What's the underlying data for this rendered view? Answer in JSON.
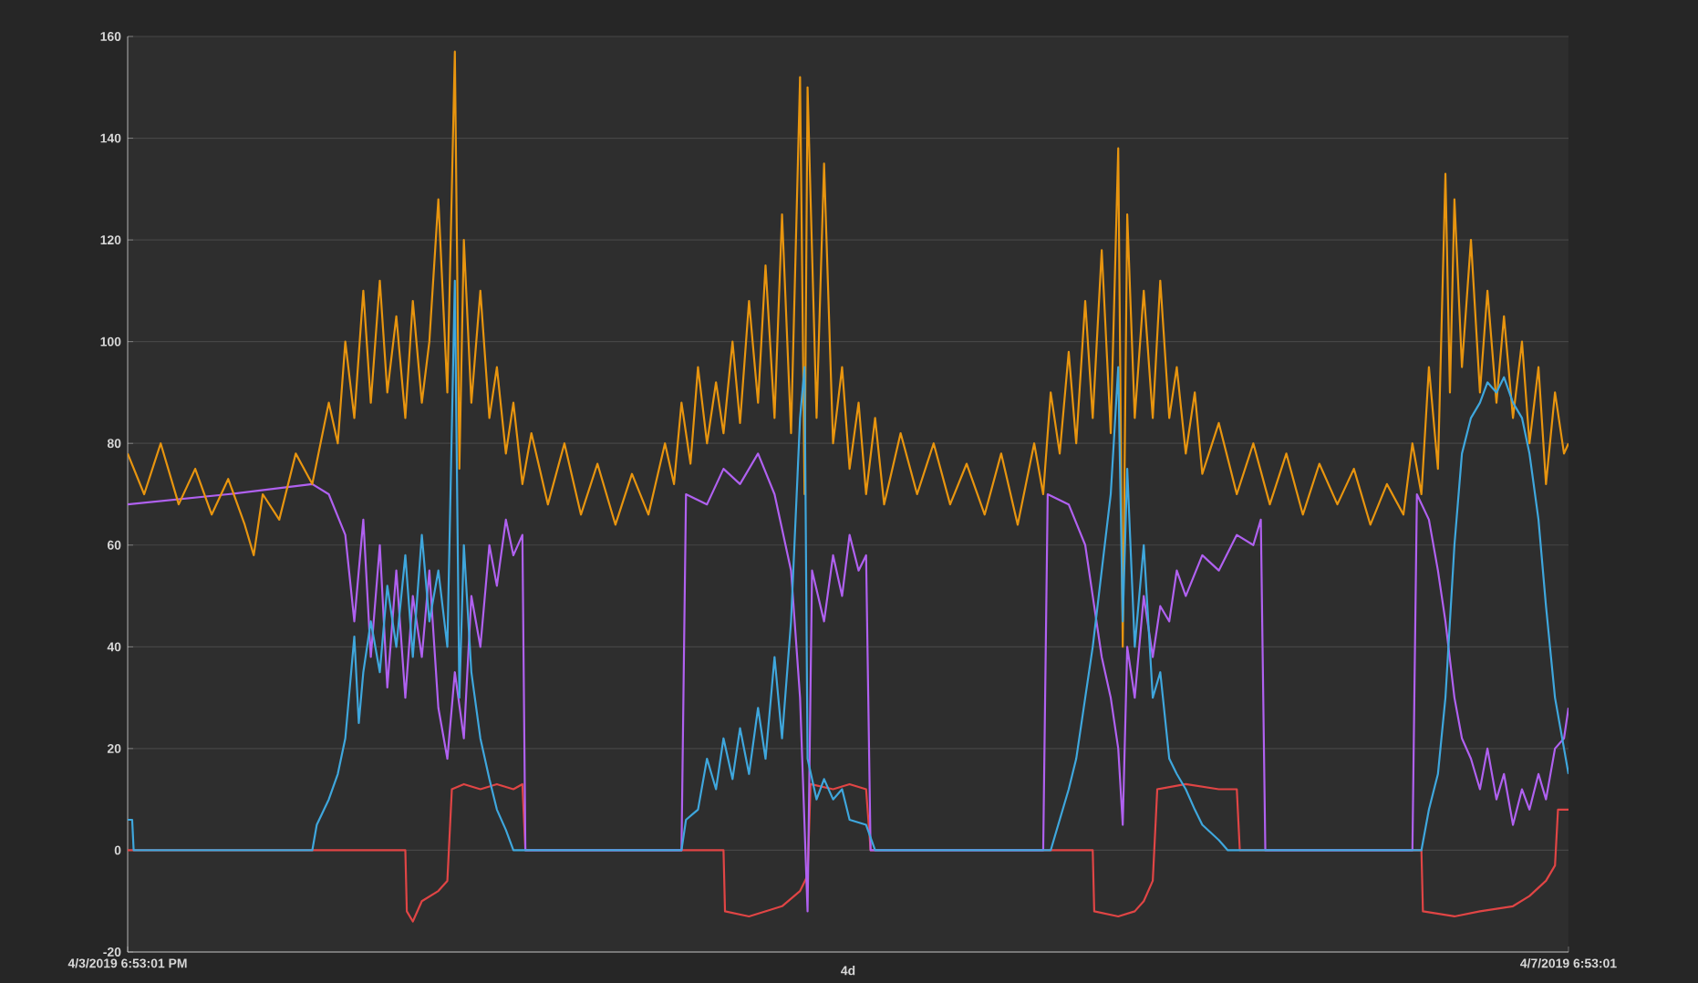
{
  "chart_data": {
    "type": "line",
    "xlim": [
      "2019-04-03T18:53",
      "2019-04-07T18:53"
    ],
    "ylim": [
      -20,
      160
    ],
    "xticks": [
      {
        "value": "2019-04-03T18:53",
        "label": "4/3/2019 6:53:01 PM"
      },
      {
        "value": "2019-04-07T18:53",
        "label": "4/7/2019 6:53:01"
      }
    ],
    "yticks": [
      -20,
      0,
      20,
      40,
      60,
      80,
      100,
      120,
      140,
      160
    ],
    "annotations": [
      "4d"
    ],
    "grid": "y",
    "series": [
      {
        "color": "#e04545",
        "x": [
          "2019-04-03T18:53",
          "2019-04-04T13:23",
          "2019-04-04T13:29",
          "2019-04-04T13:53",
          "2019-04-04T14:29",
          "2019-04-04T15:35",
          "2019-04-04T16:11",
          "2019-04-04T16:29",
          "2019-04-04T17:17",
          "2019-04-04T18:23",
          "2019-04-04T19:29",
          "2019-04-04T20:35",
          "2019-04-04T21:11",
          "2019-04-04T21:23",
          "2019-04-05T10:35",
          "2019-04-05T10:41",
          "2019-04-05T12:17",
          "2019-04-05T13:23",
          "2019-04-05T14:29",
          "2019-04-05T15:41",
          "2019-04-05T16:11",
          "2019-04-05T16:23",
          "2019-04-05T17:53",
          "2019-04-05T18:59",
          "2019-04-05T20:05",
          "2019-04-05T20:23",
          "2019-04-06T11:11",
          "2019-04-06T11:17",
          "2019-04-06T12:53",
          "2019-04-06T13:59",
          "2019-04-06T14:35",
          "2019-04-06T15:11",
          "2019-04-06T15:29",
          "2019-04-06T17:23",
          "2019-04-06T19:35",
          "2019-04-06T20:47",
          "2019-04-06T20:59",
          "2019-04-07T09:05",
          "2019-04-07T09:11",
          "2019-04-07T11:17",
          "2019-04-07T12:59",
          "2019-04-07T15:11",
          "2019-04-07T16:17",
          "2019-04-07T17:23",
          "2019-04-07T17:59",
          "2019-04-07T18:11",
          "2019-04-07T18:53"
        ],
        "values": [
          0,
          0,
          -12,
          -14,
          -10,
          -8,
          -6,
          12,
          13,
          12,
          13,
          12,
          13,
          0,
          0,
          -12,
          -13,
          -12,
          -11,
          -8,
          -5,
          13,
          12,
          13,
          12,
          0,
          0,
          -12,
          -13,
          -12,
          -10,
          -6,
          12,
          13,
          12,
          12,
          0,
          0,
          -12,
          -13,
          -12,
          -11,
          -9,
          -6,
          -3,
          8,
          8
        ]
      },
      {
        "color": "#b061f0",
        "x": [
          "2019-04-03T18:53",
          "2019-04-04T01:35",
          "2019-04-04T07:11",
          "2019-04-04T08:17",
          "2019-04-04T09:23",
          "2019-04-04T09:59",
          "2019-04-04T10:35",
          "2019-04-04T11:05",
          "2019-04-04T11:41",
          "2019-04-04T12:11",
          "2019-04-04T12:47",
          "2019-04-04T13:23",
          "2019-04-04T13:53",
          "2019-04-04T14:29",
          "2019-04-04T14:59",
          "2019-04-04T15:35",
          "2019-04-04T16:11",
          "2019-04-04T16:41",
          "2019-04-04T17:17",
          "2019-04-04T17:47",
          "2019-04-04T18:23",
          "2019-04-04T18:59",
          "2019-04-04T19:29",
          "2019-04-04T20:05",
          "2019-04-04T20:35",
          "2019-04-04T21:11",
          "2019-04-04T21:23",
          "2019-04-05T07:47",
          "2019-04-05T08:05",
          "2019-04-05T09:29",
          "2019-04-05T10:35",
          "2019-04-05T11:41",
          "2019-04-05T12:53",
          "2019-04-05T13:59",
          "2019-04-05T15:05",
          "2019-04-05T15:41",
          "2019-04-05T16:11",
          "2019-04-05T16:29",
          "2019-04-05T17:17",
          "2019-04-05T17:53",
          "2019-04-05T18:29",
          "2019-04-05T18:59",
          "2019-04-05T19:35",
          "2019-04-05T20:05",
          "2019-04-05T20:23",
          "2019-04-06T07:53",
          "2019-04-06T08:11",
          "2019-04-06T09:35",
          "2019-04-06T10:41",
          "2019-04-06T11:11",
          "2019-04-06T11:47",
          "2019-04-06T12:23",
          "2019-04-06T12:53",
          "2019-04-06T13:11",
          "2019-04-06T13:29",
          "2019-04-06T13:59",
          "2019-04-06T14:35",
          "2019-04-06T15:11",
          "2019-04-06T15:41",
          "2019-04-06T16:17",
          "2019-04-06T16:47",
          "2019-04-06T17:23",
          "2019-04-06T18:29",
          "2019-04-06T19:35",
          "2019-04-06T20:47",
          "2019-04-06T21:53",
          "2019-04-06T22:23",
          "2019-04-06T22:41",
          "2019-04-07T08:29",
          "2019-04-07T08:47",
          "2019-04-07T09:35",
          "2019-04-07T10:11",
          "2019-04-07T10:41",
          "2019-04-07T11:17",
          "2019-04-07T11:47",
          "2019-04-07T12:23",
          "2019-04-07T12:59",
          "2019-04-07T13:29",
          "2019-04-07T14:05",
          "2019-04-07T14:35",
          "2019-04-07T15:11",
          "2019-04-07T15:47",
          "2019-04-07T16:17",
          "2019-04-07T16:53",
          "2019-04-07T17:23",
          "2019-04-07T17:59",
          "2019-04-07T18:35",
          "2019-04-07T18:53"
        ],
        "values": [
          68,
          70,
          72,
          70,
          62,
          45,
          65,
          38,
          60,
          32,
          55,
          30,
          50,
          38,
          55,
          28,
          18,
          35,
          22,
          50,
          40,
          60,
          52,
          65,
          58,
          62,
          0,
          0,
          70,
          68,
          75,
          72,
          78,
          70,
          55,
          30,
          -12,
          55,
          45,
          58,
          50,
          62,
          55,
          58,
          0,
          0,
          70,
          68,
          60,
          50,
          38,
          30,
          20,
          5,
          40,
          30,
          50,
          38,
          48,
          45,
          55,
          50,
          58,
          55,
          62,
          60,
          65,
          0,
          0,
          70,
          65,
          55,
          45,
          30,
          22,
          18,
          12,
          20,
          10,
          15,
          5,
          12,
          8,
          15,
          10,
          20,
          22,
          28
        ]
      },
      {
        "color": "#3fa7dd",
        "x": [
          "2019-04-03T18:53",
          "2019-04-03T19:11",
          "2019-04-03T19:17",
          "2019-04-04T07:11",
          "2019-04-04T07:29",
          "2019-04-04T08:17",
          "2019-04-04T08:53",
          "2019-04-04T09:23",
          "2019-04-04T09:59",
          "2019-04-04T10:17",
          "2019-04-04T10:35",
          "2019-04-04T11:05",
          "2019-04-04T11:41",
          "2019-04-04T12:11",
          "2019-04-04T12:47",
          "2019-04-04T13:23",
          "2019-04-04T13:53",
          "2019-04-04T14:29",
          "2019-04-04T14:59",
          "2019-04-04T15:35",
          "2019-04-04T16:11",
          "2019-04-04T16:41",
          "2019-04-04T16:59",
          "2019-04-04T17:17",
          "2019-04-04T17:47",
          "2019-04-04T18:23",
          "2019-04-04T18:59",
          "2019-04-04T19:29",
          "2019-04-04T20:05",
          "2019-04-04T20:35",
          "2019-04-05T07:47",
          "2019-04-05T08:05",
          "2019-04-05T08:53",
          "2019-04-05T09:29",
          "2019-04-05T10:05",
          "2019-04-05T10:35",
          "2019-04-05T11:11",
          "2019-04-05T11:41",
          "2019-04-05T12:17",
          "2019-04-05T12:53",
          "2019-04-05T13:23",
          "2019-04-05T13:59",
          "2019-04-05T14:29",
          "2019-04-05T15:05",
          "2019-04-05T15:41",
          "2019-04-05T15:59",
          "2019-04-05T16:11",
          "2019-04-05T16:47",
          "2019-04-05T17:17",
          "2019-04-05T17:53",
          "2019-04-05T18:29",
          "2019-04-05T18:59",
          "2019-04-05T20:05",
          "2019-04-05T20:41",
          "2019-04-06T08:23",
          "2019-04-06T08:59",
          "2019-04-06T09:35",
          "2019-04-06T10:05",
          "2019-04-06T10:41",
          "2019-04-06T11:11",
          "2019-04-06T11:47",
          "2019-04-06T12:23",
          "2019-04-06T12:53",
          "2019-04-06T13:11",
          "2019-04-06T13:29",
          "2019-04-06T13:59",
          "2019-04-06T14:35",
          "2019-04-06T15:11",
          "2019-04-06T15:41",
          "2019-04-06T16:17",
          "2019-04-06T16:47",
          "2019-04-06T17:23",
          "2019-04-06T17:59",
          "2019-04-06T18:29",
          "2019-04-06T19:35",
          "2019-04-06T20:11",
          "2019-04-07T09:05",
          "2019-04-07T09:35",
          "2019-04-07T10:11",
          "2019-04-07T10:41",
          "2019-04-07T11:17",
          "2019-04-07T11:47",
          "2019-04-07T12:23",
          "2019-04-07T12:59",
          "2019-04-07T13:29",
          "2019-04-07T14:05",
          "2019-04-07T14:35",
          "2019-04-07T15:11",
          "2019-04-07T15:47",
          "2019-04-07T16:17",
          "2019-04-07T16:53",
          "2019-04-07T17:23",
          "2019-04-07T17:59",
          "2019-04-07T18:35",
          "2019-04-07T18:53"
        ],
        "values": [
          6,
          6,
          0,
          0,
          5,
          10,
          15,
          22,
          42,
          25,
          35,
          45,
          35,
          52,
          40,
          58,
          38,
          62,
          45,
          55,
          40,
          112,
          30,
          60,
          35,
          22,
          14,
          8,
          4,
          0,
          0,
          6,
          8,
          18,
          12,
          22,
          14,
          24,
          15,
          28,
          18,
          38,
          22,
          45,
          85,
          95,
          18,
          10,
          14,
          10,
          12,
          6,
          5,
          0,
          0,
          6,
          12,
          18,
          30,
          40,
          55,
          70,
          95,
          45,
          75,
          40,
          60,
          30,
          35,
          18,
          15,
          12,
          8,
          5,
          2,
          0,
          0,
          8,
          15,
          30,
          60,
          78,
          85,
          88,
          92,
          90,
          93,
          88,
          85,
          78,
          65,
          48,
          30,
          20,
          15
        ]
      },
      {
        "color": "#e8950f",
        "x": [
          "2019-04-03T18:53",
          "2019-04-03T19:59",
          "2019-04-03T21:05",
          "2019-04-03T22:17",
          "2019-04-03T23:23",
          "2019-04-04T00:29",
          "2019-04-04T01:35",
          "2019-04-04T02:41",
          "2019-04-04T03:17",
          "2019-04-04T03:53",
          "2019-04-04T04:59",
          "2019-04-04T06:05",
          "2019-04-04T07:11",
          "2019-04-04T08:17",
          "2019-04-04T08:53",
          "2019-04-04T09:23",
          "2019-04-04T09:59",
          "2019-04-04T10:35",
          "2019-04-04T11:05",
          "2019-04-04T11:41",
          "2019-04-04T12:11",
          "2019-04-04T12:47",
          "2019-04-04T13:23",
          "2019-04-04T13:53",
          "2019-04-04T14:29",
          "2019-04-04T14:59",
          "2019-04-04T15:35",
          "2019-04-04T16:11",
          "2019-04-04T16:41",
          "2019-04-04T16:59",
          "2019-04-04T17:17",
          "2019-04-04T17:47",
          "2019-04-04T18:23",
          "2019-04-04T18:59",
          "2019-04-04T19:29",
          "2019-04-04T20:05",
          "2019-04-04T20:35",
          "2019-04-04T21:11",
          "2019-04-04T21:47",
          "2019-04-04T22:53",
          "2019-04-04T23:59",
          "2019-04-05T01:05",
          "2019-04-05T02:11",
          "2019-04-05T03:23",
          "2019-04-05T04:29",
          "2019-04-05T05:35",
          "2019-04-05T06:41",
          "2019-04-05T07:17",
          "2019-04-05T07:47",
          "2019-04-05T08:23",
          "2019-04-05T08:53",
          "2019-04-05T09:29",
          "2019-04-05T10:05",
          "2019-04-05T10:35",
          "2019-04-05T11:11",
          "2019-04-05T11:41",
          "2019-04-05T12:17",
          "2019-04-05T12:53",
          "2019-04-05T13:23",
          "2019-04-05T13:59",
          "2019-04-05T14:29",
          "2019-04-05T15:05",
          "2019-04-05T15:41",
          "2019-04-05T15:59",
          "2019-04-05T16:11",
          "2019-04-05T16:47",
          "2019-04-05T17:17",
          "2019-04-05T17:53",
          "2019-04-05T18:29",
          "2019-04-05T18:59",
          "2019-04-05T19:35",
          "2019-04-05T20:05",
          "2019-04-05T20:41",
          "2019-04-05T21:17",
          "2019-04-05T22:23",
          "2019-04-05T23:29",
          "2019-04-06T00:35",
          "2019-04-06T01:41",
          "2019-04-06T02:47",
          "2019-04-06T03:59",
          "2019-04-06T05:05",
          "2019-04-06T06:11",
          "2019-04-06T07:17",
          "2019-04-06T07:53",
          "2019-04-06T08:23",
          "2019-04-06T08:59",
          "2019-04-06T09:35",
          "2019-04-06T10:05",
          "2019-04-06T10:41",
          "2019-04-06T11:11",
          "2019-04-06T11:47",
          "2019-04-06T12:23",
          "2019-04-06T12:53",
          "2019-04-06T13:11",
          "2019-04-06T13:29",
          "2019-04-06T13:59",
          "2019-04-06T14:35",
          "2019-04-06T15:11",
          "2019-04-06T15:41",
          "2019-04-06T16:17",
          "2019-04-06T16:47",
          "2019-04-06T17:23",
          "2019-04-06T17:59",
          "2019-04-06T18:29",
          "2019-04-06T19:35",
          "2019-04-06T20:47",
          "2019-04-06T21:53",
          "2019-04-06T22:59",
          "2019-04-07T00:05",
          "2019-04-07T01:11",
          "2019-04-07T02:17",
          "2019-04-07T03:29",
          "2019-04-07T04:35",
          "2019-04-07T05:41",
          "2019-04-07T06:47",
          "2019-04-07T07:53",
          "2019-04-07T08:29",
          "2019-04-07T09:05",
          "2019-04-07T09:35",
          "2019-04-07T10:11",
          "2019-04-07T10:41",
          "2019-04-07T10:59",
          "2019-04-07T11:17",
          "2019-04-07T11:47",
          "2019-04-07T12:23",
          "2019-04-07T12:59",
          "2019-04-07T13:29",
          "2019-04-07T14:05",
          "2019-04-07T14:35",
          "2019-04-07T15:11",
          "2019-04-07T15:47",
          "2019-04-07T16:17",
          "2019-04-07T16:53",
          "2019-04-07T17:23",
          "2019-04-07T17:59",
          "2019-04-07T18:35",
          "2019-04-07T18:53"
        ],
        "values": [
          78,
          70,
          80,
          68,
          75,
          66,
          73,
          64,
          58,
          70,
          65,
          78,
          72,
          88,
          80,
          100,
          85,
          110,
          88,
          112,
          90,
          105,
          85,
          108,
          88,
          100,
          128,
          90,
          157,
          75,
          120,
          88,
          110,
          85,
          95,
          78,
          88,
          72,
          82,
          68,
          80,
          66,
          76,
          64,
          74,
          66,
          80,
          72,
          88,
          76,
          95,
          80,
          92,
          82,
          100,
          84,
          108,
          88,
          115,
          85,
          125,
          82,
          152,
          70,
          150,
          85,
          135,
          80,
          95,
          75,
          88,
          70,
          85,
          68,
          82,
          70,
          80,
          68,
          76,
          66,
          78,
          64,
          80,
          70,
          90,
          78,
          98,
          80,
          108,
          85,
          118,
          82,
          138,
          40,
          125,
          85,
          110,
          85,
          112,
          85,
          95,
          78,
          90,
          74,
          84,
          70,
          80,
          68,
          78,
          66,
          76,
          68,
          75,
          64,
          72,
          66,
          80,
          70,
          95,
          75,
          133,
          90,
          128,
          95,
          120,
          90,
          110,
          88,
          105,
          85,
          100,
          80,
          95,
          72,
          90,
          78,
          80
        ]
      }
    ]
  }
}
